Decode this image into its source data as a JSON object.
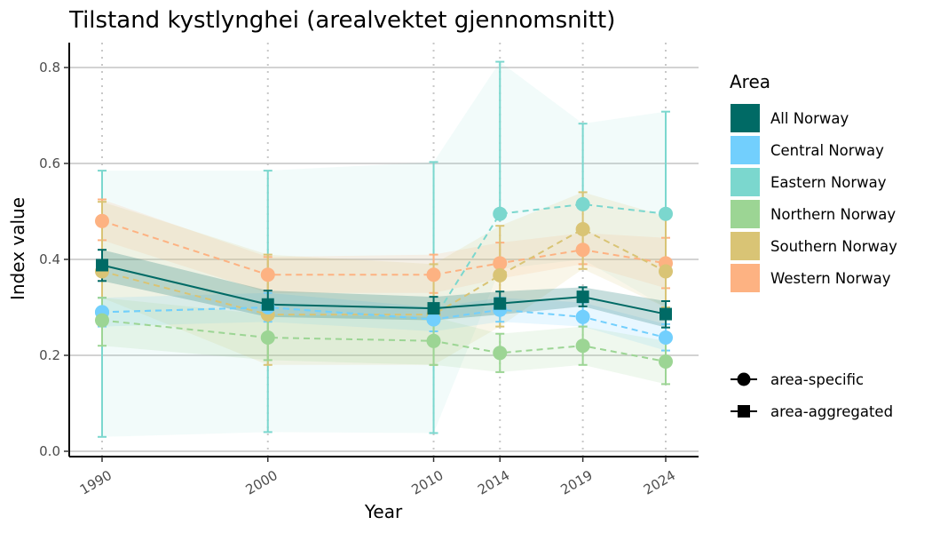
{
  "chart_data": {
    "type": "line",
    "title": "Tilstand kystlynghei (arealvektet gjennomsnitt)",
    "xlabel": "Year",
    "ylabel": "Index value",
    "x": [
      1990,
      2000,
      2010,
      2014,
      2019,
      2024
    ],
    "x_tick_labels": [
      "1990",
      "2000",
      "2010",
      "2014",
      "2019",
      "2024"
    ],
    "xlim": [
      1990,
      2024
    ],
    "ylim": [
      0,
      0.8
    ],
    "y_ticks": [
      0.0,
      0.2,
      0.4,
      0.6,
      0.8
    ],
    "y_tick_labels": [
      "0.0",
      "0.2",
      "0.4",
      "0.6",
      "0.8"
    ],
    "grid": {
      "horizontal": true,
      "vertical_dotted": true
    },
    "legend": {
      "position": "right",
      "area_title": "Area",
      "shape_items": [
        {
          "label": "area-specific",
          "shape": "circle"
        },
        {
          "label": "area-aggregated",
          "shape": "square"
        }
      ]
    },
    "series": [
      {
        "name": "Eastern Norway",
        "color": "#7BD7CE",
        "shape": "circle",
        "linestyle": "dashed",
        "values": [
          0.29,
          0.3,
          0.275,
          0.495,
          0.515,
          0.495
        ],
        "error_low": [
          0.03,
          0.04,
          0.038,
          null,
          null,
          null
        ],
        "error_high": [
          0.585,
          0.585,
          0.603,
          0.812,
          0.683,
          0.708
        ],
        "band_low": [
          0.03,
          0.04,
          0.038,
          0.38,
          0.4,
          0.3
        ],
        "band_high": [
          0.585,
          0.585,
          0.603,
          0.812,
          0.683,
          0.708
        ]
      },
      {
        "name": "Western Norway",
        "color": "#FDB282",
        "shape": "circle",
        "linestyle": "dashed",
        "values": [
          0.48,
          0.368,
          0.368,
          0.392,
          0.42,
          0.392
        ],
        "error_low": [
          0.44,
          0.33,
          0.33,
          0.36,
          0.39,
          0.34
        ],
        "error_high": [
          0.525,
          0.405,
          0.41,
          0.435,
          0.455,
          0.445
        ],
        "band_low": [
          0.44,
          0.33,
          0.33,
          0.36,
          0.39,
          0.34
        ],
        "band_high": [
          0.525,
          0.405,
          0.41,
          0.435,
          0.455,
          0.445
        ]
      },
      {
        "name": "Southern Norway",
        "color": "#D9C475",
        "shape": "circle",
        "linestyle": "dashed",
        "values": [
          0.375,
          0.285,
          0.285,
          0.367,
          0.463,
          0.375
        ],
        "error_low": [
          0.32,
          0.18,
          0.18,
          0.26,
          0.38,
          0.3
        ],
        "error_high": [
          0.52,
          0.41,
          0.39,
          0.47,
          0.54,
          0.49
        ],
        "band_low": [
          0.32,
          0.18,
          0.18,
          0.26,
          0.38,
          0.3
        ],
        "band_high": [
          0.52,
          0.41,
          0.39,
          0.47,
          0.54,
          0.49
        ]
      },
      {
        "name": "Central Norway",
        "color": "#72CFFD",
        "shape": "circle",
        "linestyle": "dashed",
        "values": [
          0.29,
          0.3,
          0.275,
          0.295,
          0.28,
          0.237
        ],
        "error_low": [
          0.26,
          0.27,
          0.25,
          0.27,
          0.26,
          0.21
        ],
        "error_high": [
          0.32,
          0.33,
          0.3,
          0.32,
          0.31,
          0.265
        ],
        "band_low": [
          0.26,
          0.27,
          0.25,
          0.27,
          0.26,
          0.21
        ],
        "band_high": [
          0.32,
          0.33,
          0.3,
          0.32,
          0.31,
          0.265
        ]
      },
      {
        "name": "Northern Norway",
        "color": "#9CD594",
        "shape": "circle",
        "linestyle": "dashed",
        "values": [
          0.273,
          0.237,
          0.23,
          0.205,
          0.22,
          0.187
        ],
        "error_low": [
          0.22,
          0.19,
          0.18,
          0.165,
          0.18,
          0.14
        ],
        "error_high": [
          0.32,
          0.285,
          0.28,
          0.245,
          0.26,
          0.23
        ],
        "band_low": [
          0.22,
          0.19,
          0.18,
          0.165,
          0.18,
          0.14
        ],
        "band_high": [
          0.32,
          0.285,
          0.28,
          0.245,
          0.26,
          0.23
        ]
      },
      {
        "name": "All Norway",
        "color": "#006A65",
        "shape": "square",
        "linestyle": "solid",
        "values": [
          0.388,
          0.306,
          0.298,
          0.308,
          0.322,
          0.286
        ],
        "error_low": [
          0.355,
          0.28,
          0.273,
          0.285,
          0.302,
          0.258
        ],
        "error_high": [
          0.42,
          0.335,
          0.322,
          0.333,
          0.342,
          0.313
        ],
        "band_low": [
          0.355,
          0.28,
          0.273,
          0.285,
          0.302,
          0.258
        ],
        "band_high": [
          0.42,
          0.335,
          0.322,
          0.333,
          0.342,
          0.313
        ]
      }
    ],
    "legend_order": [
      "All Norway",
      "Central Norway",
      "Eastern Norway",
      "Northern Norway",
      "Southern Norway",
      "Western Norway"
    ]
  }
}
